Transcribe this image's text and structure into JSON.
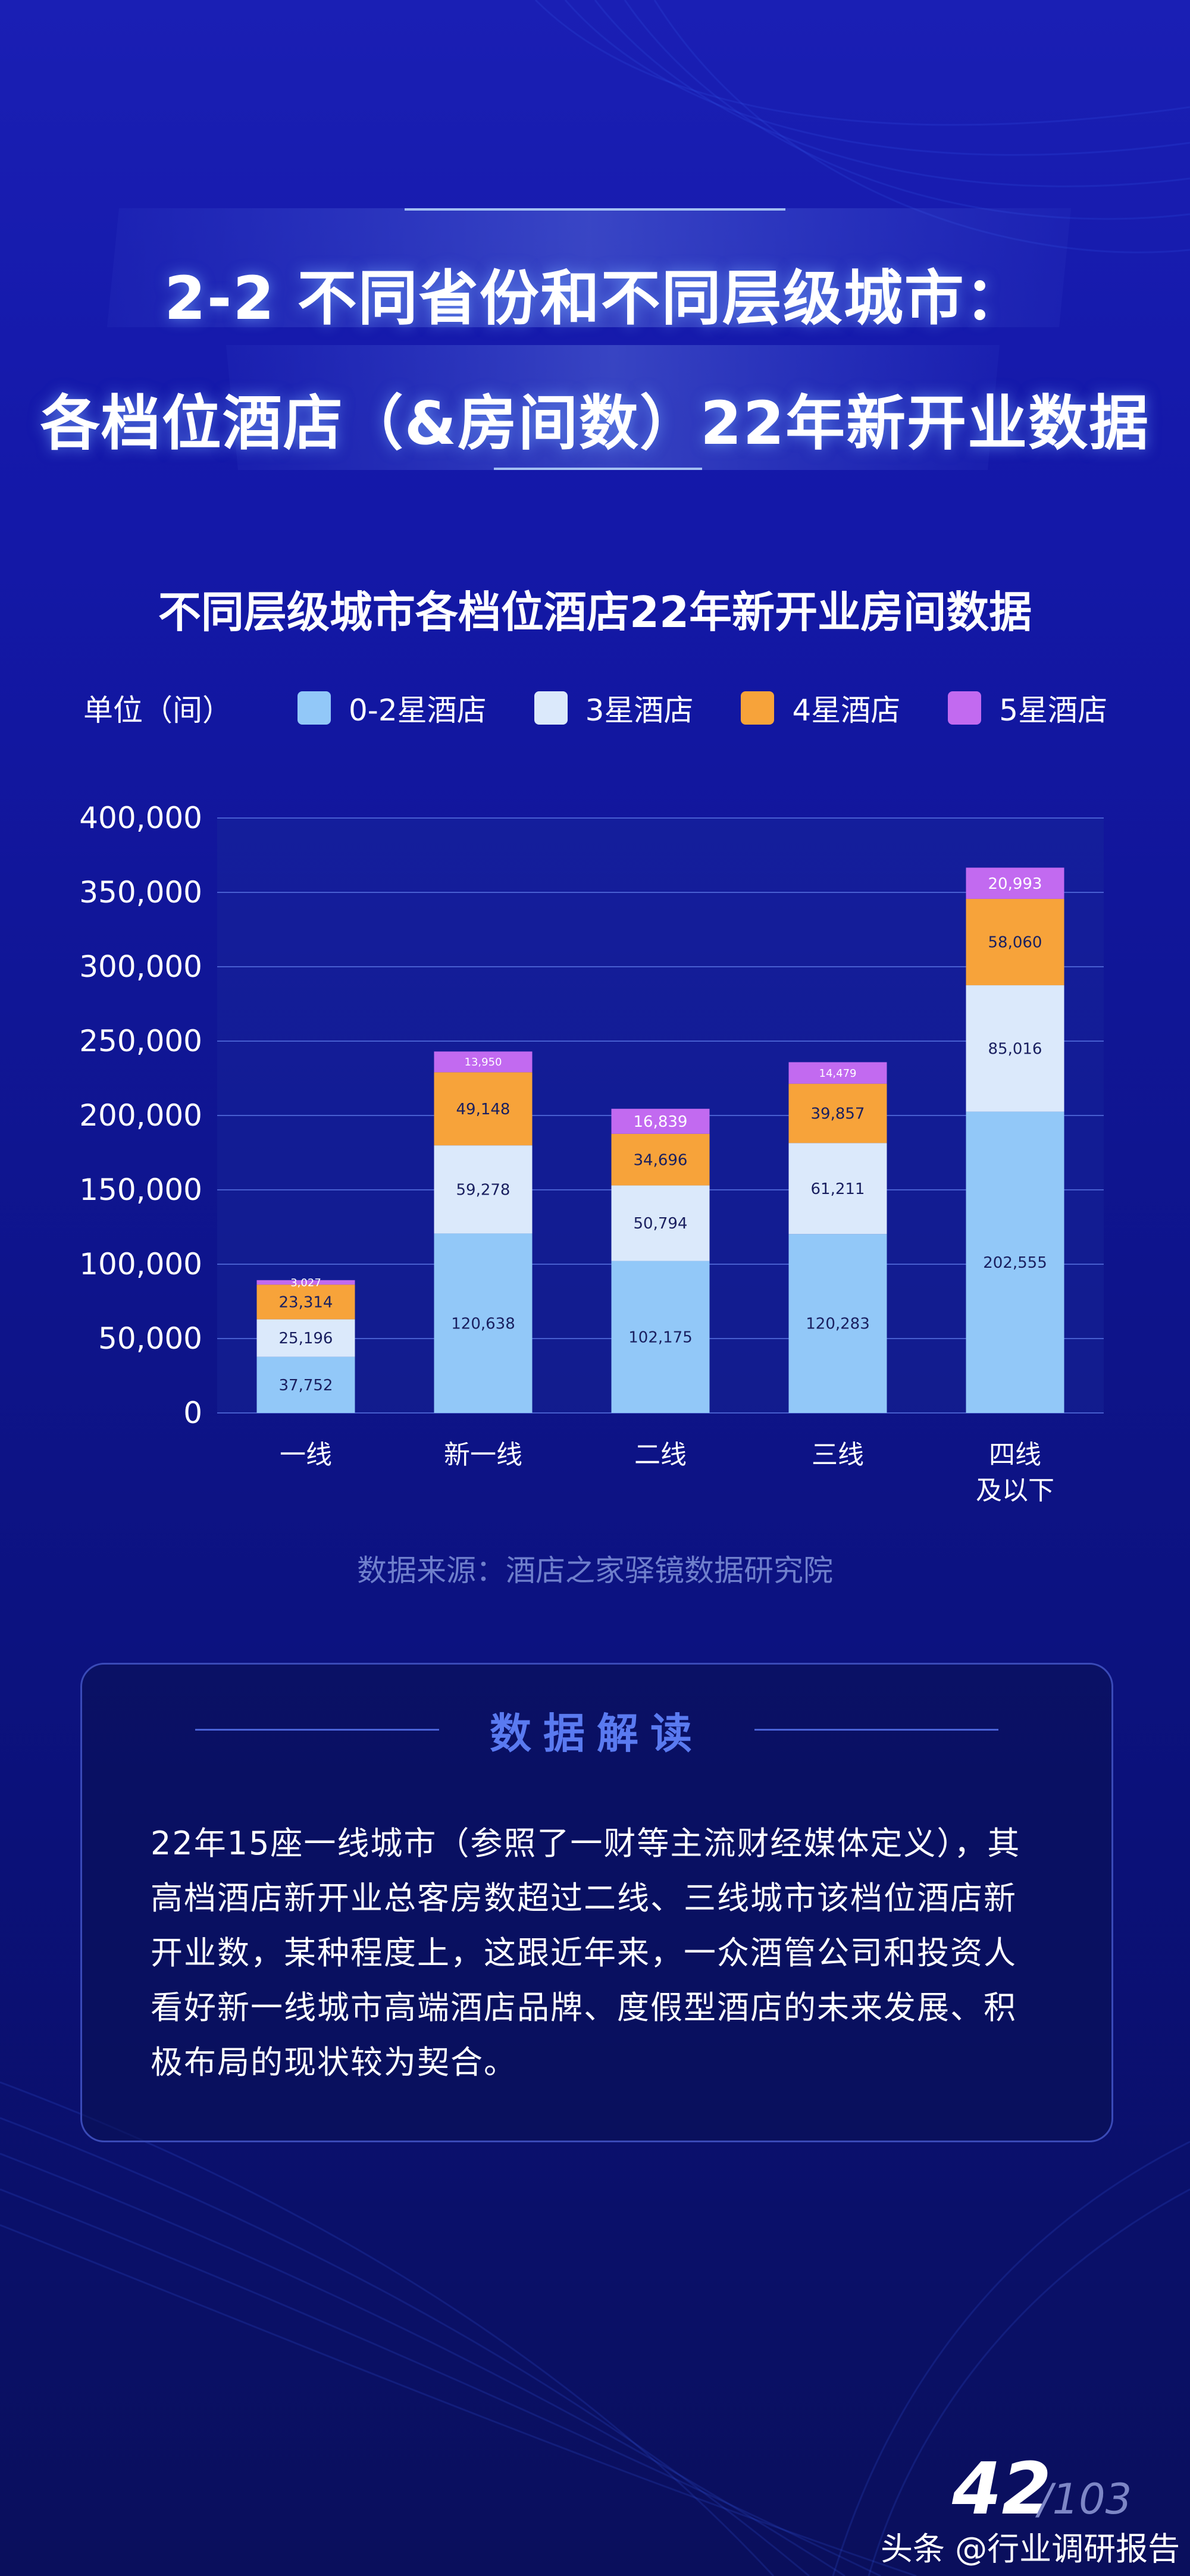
{
  "header": {
    "title_line1": "2-2 不同省份和不同层级城市：",
    "title_line2": "各档位酒店（&房间数）22年新开业数据"
  },
  "chart_data": {
    "type": "bar",
    "stacked": true,
    "title": "不同层级城市各档位酒店22年新开业房间数据",
    "unit": "单位（间）",
    "categories": [
      "一线",
      "新一线",
      "二线",
      "三线",
      "四线\n及以下"
    ],
    "series": [
      {
        "name": "0-2星酒店",
        "color": "#92c8f8",
        "values": [
          37752,
          120638,
          102175,
          120283,
          202555
        ]
      },
      {
        "name": "3星酒店",
        "color": "#dbe9fb",
        "values": [
          25196,
          59278,
          50794,
          61211,
          85016
        ]
      },
      {
        "name": "4星酒店",
        "color": "#f7a33a",
        "values": [
          23314,
          49148,
          34696,
          39857,
          58060
        ]
      },
      {
        "name": "5星酒店",
        "color": "#c26af0",
        "values": [
          3027,
          13950,
          16839,
          14479,
          20993
        ]
      }
    ],
    "data_labels": [
      [
        "37,752",
        "120,638",
        "102,175",
        "120,283",
        "202,555"
      ],
      [
        "25,196",
        "59,278",
        "50,794",
        "61,211",
        "85,016"
      ],
      [
        "23,314",
        "49,148",
        "34,696",
        "39,857",
        "58,060"
      ],
      [
        "3,027",
        "13,950",
        "16,839",
        "14,479",
        "20,993"
      ]
    ],
    "yticks": [
      "0",
      "50,000",
      "100,000",
      "150,000",
      "200,000",
      "250,000",
      "300,000",
      "350,000",
      "400,000"
    ],
    "ylim": [
      0,
      400000
    ],
    "grid": true,
    "legend_position": "top"
  },
  "source": "数据来源：酒店之家驿镜数据研究院",
  "interpretation": {
    "heading": "数据解读",
    "lines": [
      "22年15座一线城市（参照了一财等主流财经媒体定义），其",
      "高档酒店新开业总客房数超过二线、三线城市该档位酒店新",
      "开业数，某种程度上，这跟近年来，一众酒管公司和投资人",
      "看好新一线城市高端酒店品牌、度假型酒店的未来发展、积",
      "极布局的现状较为契合。"
    ]
  },
  "page": {
    "current": "42",
    "total": "/103"
  },
  "watermark": "头条 @行业调研报告"
}
